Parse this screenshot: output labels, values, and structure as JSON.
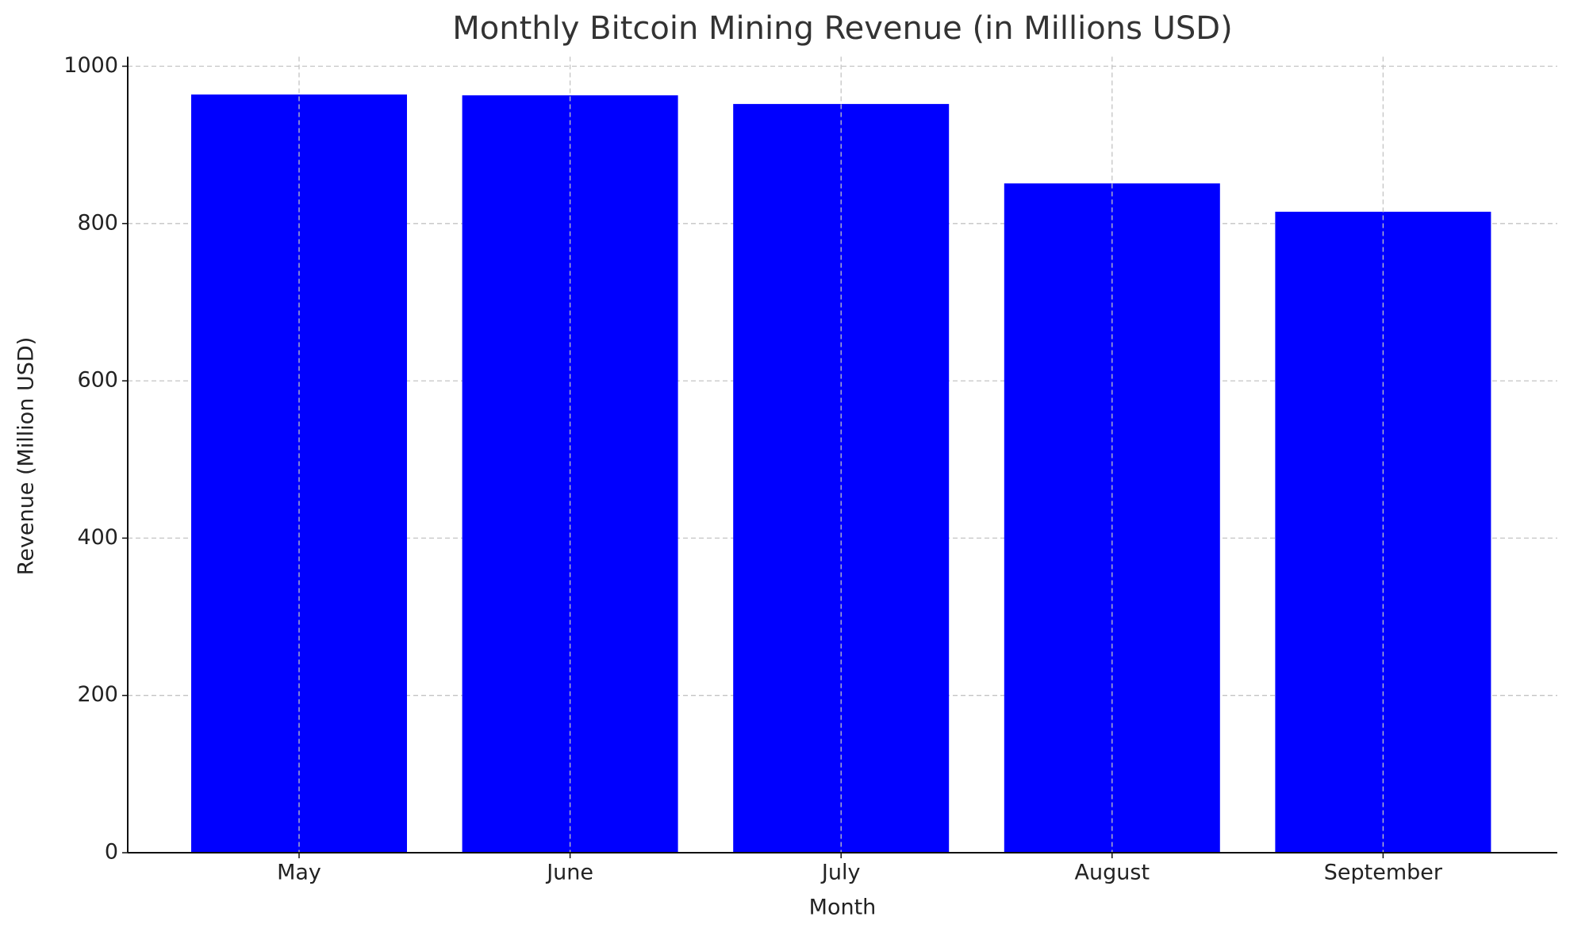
{
  "chart_data": {
    "type": "bar",
    "title": "Monthly Bitcoin Mining Revenue (in Millions USD)",
    "x_label": "Month",
    "y_label": "Revenue (Million USD)",
    "categories": [
      "May",
      "June",
      "July",
      "August",
      "September"
    ],
    "values": [
      964,
      963,
      952,
      851,
      815
    ],
    "color": "#0000ff",
    "ylim": [
      0,
      1000
    ],
    "yticks": [
      0,
      200,
      400,
      600,
      800,
      1000
    ],
    "grid": true
  }
}
